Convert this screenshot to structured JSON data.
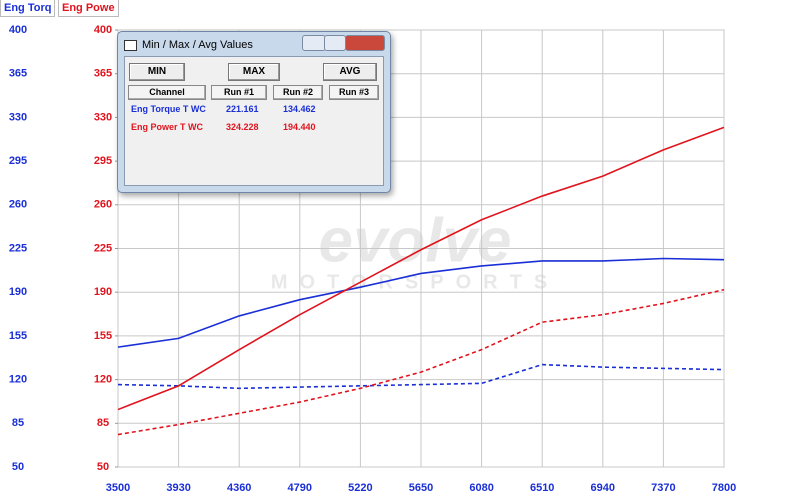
{
  "tabs": [
    "Eng Torq",
    "Eng Powe"
  ],
  "watermark": {
    "logo": "evolve",
    "sub": "MOTORSPORTS"
  },
  "window": {
    "title": "Min / Max / Avg Values",
    "buttons": [
      "MIN",
      "MAX",
      "AVG"
    ],
    "header": [
      "Channel",
      "Run #1",
      "Run #2",
      "Run #3"
    ],
    "rows": [
      [
        "Eng Torque T WC",
        "221.161",
        "134.462"
      ],
      [
        "Eng Power T WC",
        "324.228",
        "194.440"
      ]
    ]
  },
  "chart_data": {
    "type": "line",
    "x": [
      3500,
      3930,
      4360,
      4790,
      5220,
      5650,
      6080,
      6510,
      6940,
      7370,
      7800
    ],
    "xlim": [
      3500,
      7800
    ],
    "xticks": [
      3500,
      3930,
      4360,
      4790,
      5220,
      5650,
      6080,
      6510,
      6940,
      7370,
      7800
    ],
    "ylim": [
      50,
      400
    ],
    "yticks": [
      50,
      85,
      120,
      155,
      190,
      225,
      260,
      295,
      330,
      365,
      400
    ],
    "ycolor": "#1a2fd6",
    "y2lim": [
      50,
      400
    ],
    "y2ticks": [
      50,
      85,
      120,
      155,
      190,
      225,
      260,
      295,
      330,
      365,
      400
    ],
    "y2color": "#e0141e",
    "grid": true,
    "series": [
      {
        "color": "#1a2fd6",
        "style": "solid",
        "values": [
          146,
          153,
          171,
          184,
          194,
          205,
          211,
          215,
          215,
          217,
          216
        ]
      },
      {
        "color": "#1a2fd6",
        "style": "dashed",
        "values": [
          116,
          115,
          113,
          114,
          115,
          116,
          117,
          132,
          130,
          129,
          128
        ]
      },
      {
        "color": "#e0141e",
        "style": "solid",
        "axis": "y2",
        "values": [
          96,
          115,
          144,
          172,
          198,
          224,
          248,
          267,
          283,
          304,
          322
        ]
      },
      {
        "color": "#e0141e",
        "style": "dashed",
        "axis": "y2",
        "values": [
          76,
          84,
          93,
          102,
          113,
          126,
          144,
          166,
          172,
          181,
          192
        ]
      }
    ]
  }
}
